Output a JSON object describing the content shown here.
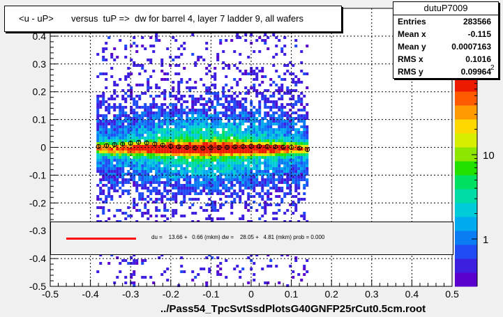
{
  "chart_data": {
    "type": "heatmap",
    "title": "<u - uP>       versus  tuP =>  dw for barrel 4, layer 7 ladder 9, all wafers",
    "xlabel": "../Pass54_TpcSvtSsdPlotsG40GNFP25rCut0.5cm.root",
    "ylabel": "",
    "xlim": [
      -0.5,
      0.5
    ],
    "ylim": [
      -0.5,
      0.5
    ],
    "x_ticks": [
      "-0.5",
      "-0.4",
      "-0.3",
      "-0.2",
      "-0.1",
      "0",
      "0.1",
      "0.2",
      "0.3",
      "0.4",
      "0.5"
    ],
    "y_ticks": [
      "-0.5",
      "-0.4",
      "-0.3",
      "-0.2",
      "-0.1",
      "0",
      "0.1",
      "0.2",
      "0.3",
      "0.4"
    ],
    "grid": true,
    "colorbar": {
      "scale": "log",
      "labels": [
        "1",
        "10"
      ],
      "exponent_label": "2"
    },
    "stats": {
      "name": "dutuP7009",
      "rows": [
        {
          "k": "Entries",
          "v": "283566"
        },
        {
          "k": "Mean x",
          "v": "-0.115"
        },
        {
          "k": "Mean y",
          "v": "0.0007163"
        },
        {
          "k": "RMS x",
          "v": "0.1016"
        },
        {
          "k": "RMS y",
          "v": "0.09964"
        }
      ]
    },
    "fit_legend": "du =    13.66 +   0.66 (mkm) dw =    28.05 +   4.81 (mkm) prob = 0.000",
    "profile_points": {
      "x": [
        -0.38,
        -0.36,
        -0.34,
        -0.32,
        -0.3,
        -0.28,
        -0.26,
        -0.24,
        -0.22,
        -0.2,
        -0.18,
        -0.16,
        -0.14,
        -0.12,
        -0.1,
        -0.08,
        -0.06,
        -0.04,
        -0.02,
        0.0,
        0.02,
        0.04,
        0.06,
        0.08,
        0.1,
        0.12,
        0.14
      ],
      "y": [
        0.003,
        0.006,
        0.01,
        0.012,
        0.015,
        0.018,
        0.016,
        0.012,
        0.008,
        0.004,
        0.002,
        0.0,
        -0.002,
        -0.003,
        -0.002,
        -0.001,
        0.0,
        0.002,
        0.003,
        0.004,
        0.004,
        0.003,
        0.002,
        0.001,
        0.0,
        -0.003,
        -0.008
      ]
    }
  }
}
